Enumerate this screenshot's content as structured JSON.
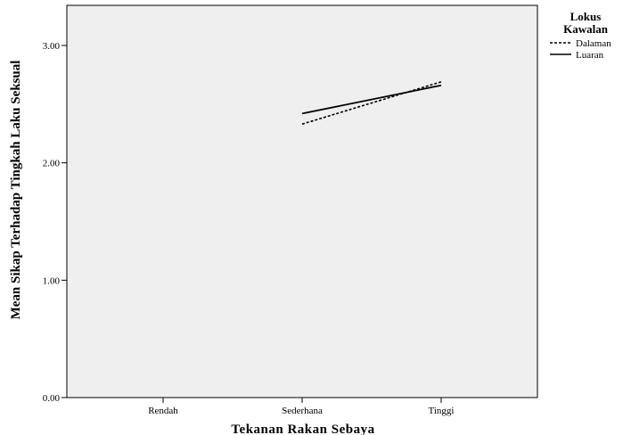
{
  "chart_data": {
    "type": "line",
    "categories": [
      "Rendah",
      "Sederhana",
      "Tinggi"
    ],
    "xlabel": "Tekanan Rakan Sebaya",
    "ylabel": "Mean Sikap Terhadap Tingkah Laku Seksual",
    "ylim": [
      0,
      3.5
    ],
    "yticks": [
      "0.00",
      "1.00",
      "2.00",
      "3.00"
    ],
    "grid": false,
    "legend_position": "right",
    "legend_title_lines": [
      "Lokus",
      "Kawalan"
    ],
    "series": [
      {
        "name": "Dalaman",
        "style": "dashed",
        "color": "#000000",
        "values": [
          null,
          2.33,
          2.69
        ]
      },
      {
        "name": "Luaran",
        "style": "solid",
        "color": "#000000",
        "values": [
          null,
          2.42,
          2.66
        ]
      }
    ]
  },
  "colors": {
    "plot_background": "#efefef",
    "axis": "#000000"
  }
}
